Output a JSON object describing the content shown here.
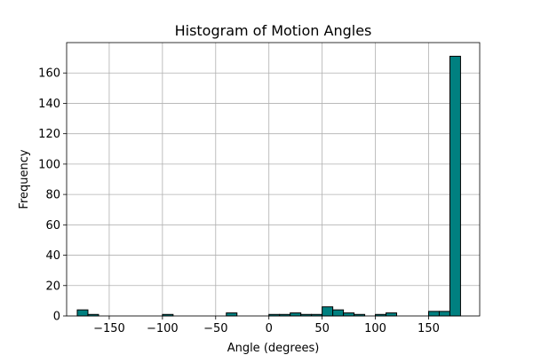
{
  "chart_data": {
    "type": "bar",
    "title": "Histogram of Motion Angles",
    "xlabel": "Angle (degrees)",
    "ylabel": "Frequency",
    "xlim": [
      -190,
      198
    ],
    "ylim": [
      0,
      180
    ],
    "xticks": [
      -150,
      -100,
      -50,
      0,
      50,
      100,
      150
    ],
    "yticks": [
      0,
      20,
      40,
      60,
      80,
      100,
      120,
      140,
      160
    ],
    "grid": true,
    "bar_color": "#008080",
    "edge_color": "#000000",
    "bin_width": 10,
    "bins": [
      {
        "start": -180,
        "end": -170,
        "count": 4
      },
      {
        "start": -170,
        "end": -160,
        "count": 1
      },
      {
        "start": -100,
        "end": -90,
        "count": 1
      },
      {
        "start": -40,
        "end": -30,
        "count": 2
      },
      {
        "start": 0,
        "end": 10,
        "count": 1
      },
      {
        "start": 10,
        "end": 20,
        "count": 1
      },
      {
        "start": 20,
        "end": 30,
        "count": 2
      },
      {
        "start": 30,
        "end": 40,
        "count": 1
      },
      {
        "start": 40,
        "end": 50,
        "count": 1
      },
      {
        "start": 50,
        "end": 60,
        "count": 6
      },
      {
        "start": 60,
        "end": 70,
        "count": 4
      },
      {
        "start": 70,
        "end": 80,
        "count": 2
      },
      {
        "start": 80,
        "end": 90,
        "count": 1
      },
      {
        "start": 100,
        "end": 110,
        "count": 1
      },
      {
        "start": 110,
        "end": 120,
        "count": 2
      },
      {
        "start": 150,
        "end": 160,
        "count": 3
      },
      {
        "start": 160,
        "end": 170,
        "count": 3
      },
      {
        "start": 170,
        "end": 180,
        "count": 171
      }
    ]
  }
}
